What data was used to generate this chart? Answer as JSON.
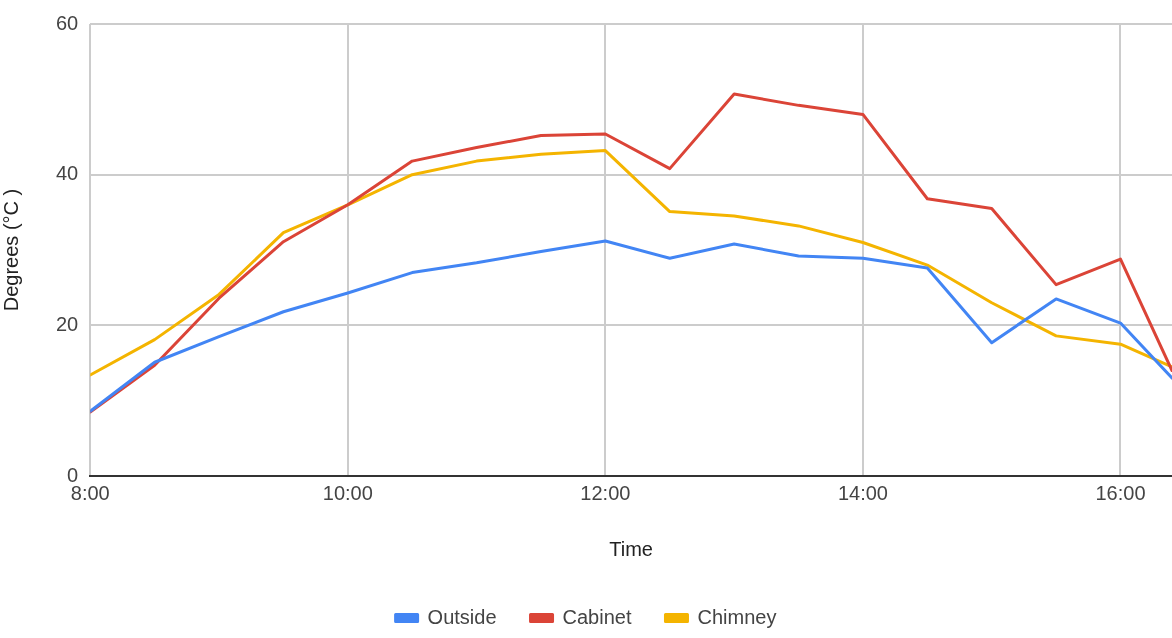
{
  "chart_data": {
    "type": "line",
    "xlabel": "Time",
    "ylabel": "Degrees (°C )",
    "x": [
      8,
      8.5,
      9,
      9.5,
      10,
      10.5,
      11,
      11.5,
      12,
      12.5,
      13,
      13.5,
      14,
      14.5,
      15,
      15.5,
      16,
      16.4
    ],
    "series": [
      {
        "name": "Outside",
        "color": "#4285f4",
        "values": [
          8.6,
          15.1,
          18.5,
          21.8,
          24.3,
          27.0,
          28.3,
          29.8,
          31.2,
          28.9,
          30.8,
          29.2,
          28.9,
          27.6,
          17.7,
          23.5,
          20.3,
          13
        ]
      },
      {
        "name": "Cabinet",
        "color": "#db4437",
        "values": [
          8.5,
          14.7,
          23.6,
          31.1,
          36,
          41.8,
          43.6,
          45.2,
          45.4,
          40.8,
          50.7,
          49.2,
          48,
          36.8,
          35.5,
          25.4,
          28.8,
          14
        ]
      },
      {
        "name": "Chimney",
        "color": "#f4b400",
        "values": [
          13.4,
          18.1,
          24.1,
          32.3,
          36,
          40,
          41.8,
          42.7,
          43.2,
          35.1,
          34.5,
          33.2,
          31,
          28,
          23,
          18.6,
          17.5,
          14.5
        ]
      }
    ],
    "xlim": [
      8,
      16.4
    ],
    "xticks": [
      {
        "value": 8,
        "label": "8:00"
      },
      {
        "value": 10,
        "label": "10:00"
      },
      {
        "value": 12,
        "label": "12:00"
      },
      {
        "value": 14,
        "label": "14:00"
      },
      {
        "value": 16,
        "label": "16:00"
      }
    ],
    "ylim": [
      0,
      60
    ],
    "yticks": [
      0,
      20,
      40,
      60
    ],
    "grid": true,
    "legend": "bottom",
    "marker": "none",
    "line_style": "solid"
  }
}
